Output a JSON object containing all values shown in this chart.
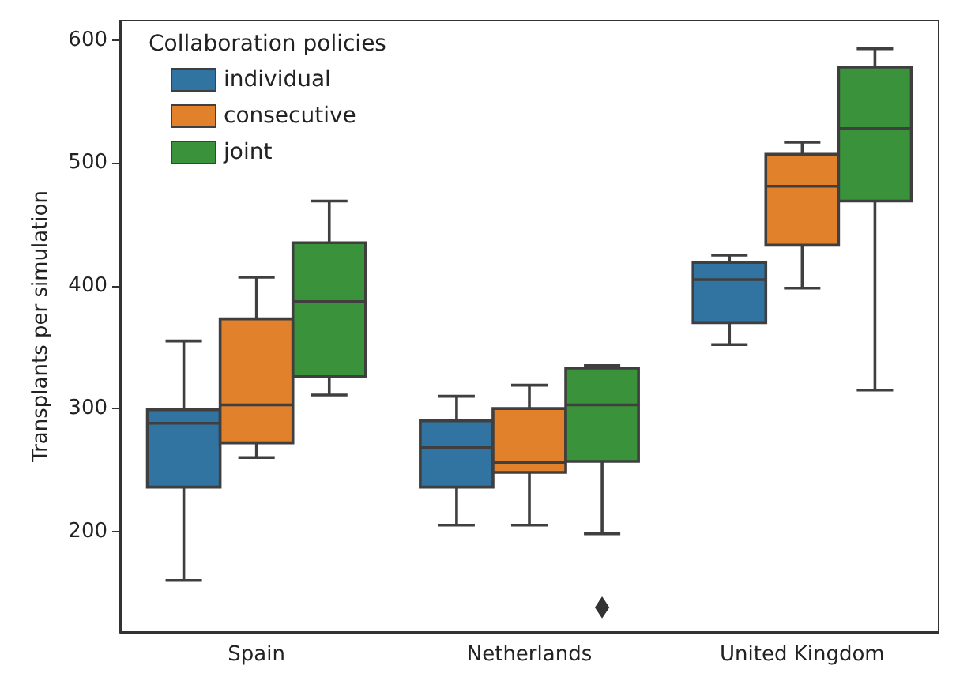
{
  "chart_data": {
    "type": "box",
    "ylabel": "Transplants per simulation",
    "legend_title": "Collaboration policies",
    "categories": [
      "Spain",
      "Netherlands",
      "United Kingdom"
    ],
    "series": [
      {
        "name": "individual",
        "color": "#3274a1",
        "boxes": [
          {
            "low": 160,
            "q1": 236,
            "median": 288,
            "q3": 299,
            "high": 355
          },
          {
            "low": 205,
            "q1": 236,
            "median": 268,
            "q3": 290,
            "high": 310
          },
          {
            "low": 352,
            "q1": 370,
            "median": 405,
            "q3": 419,
            "high": 425
          }
        ]
      },
      {
        "name": "consecutive",
        "color": "#e1812c",
        "boxes": [
          {
            "low": 260,
            "q1": 272,
            "median": 303,
            "q3": 373,
            "high": 407
          },
          {
            "low": 205,
            "q1": 248,
            "median": 256,
            "q3": 300,
            "high": 319
          },
          {
            "low": 398,
            "q1": 433,
            "median": 481,
            "q3": 507,
            "high": 517
          }
        ]
      },
      {
        "name": "joint",
        "color": "#3a923a",
        "boxes": [
          {
            "low": 311,
            "q1": 326,
            "median": 387,
            "q3": 435,
            "high": 469
          },
          {
            "low": 198,
            "q1": 257,
            "median": 303,
            "q3": 333,
            "high": 335,
            "outliers": [
              138
            ]
          },
          {
            "low": 315,
            "q1": 469,
            "median": 528,
            "q3": 578,
            "high": 593
          }
        ]
      }
    ],
    "ylim": [
      118,
      616
    ],
    "yticks": [
      200,
      300,
      400,
      500,
      600
    ],
    "grid": false,
    "legend": "top left",
    "marker": "diamond"
  }
}
